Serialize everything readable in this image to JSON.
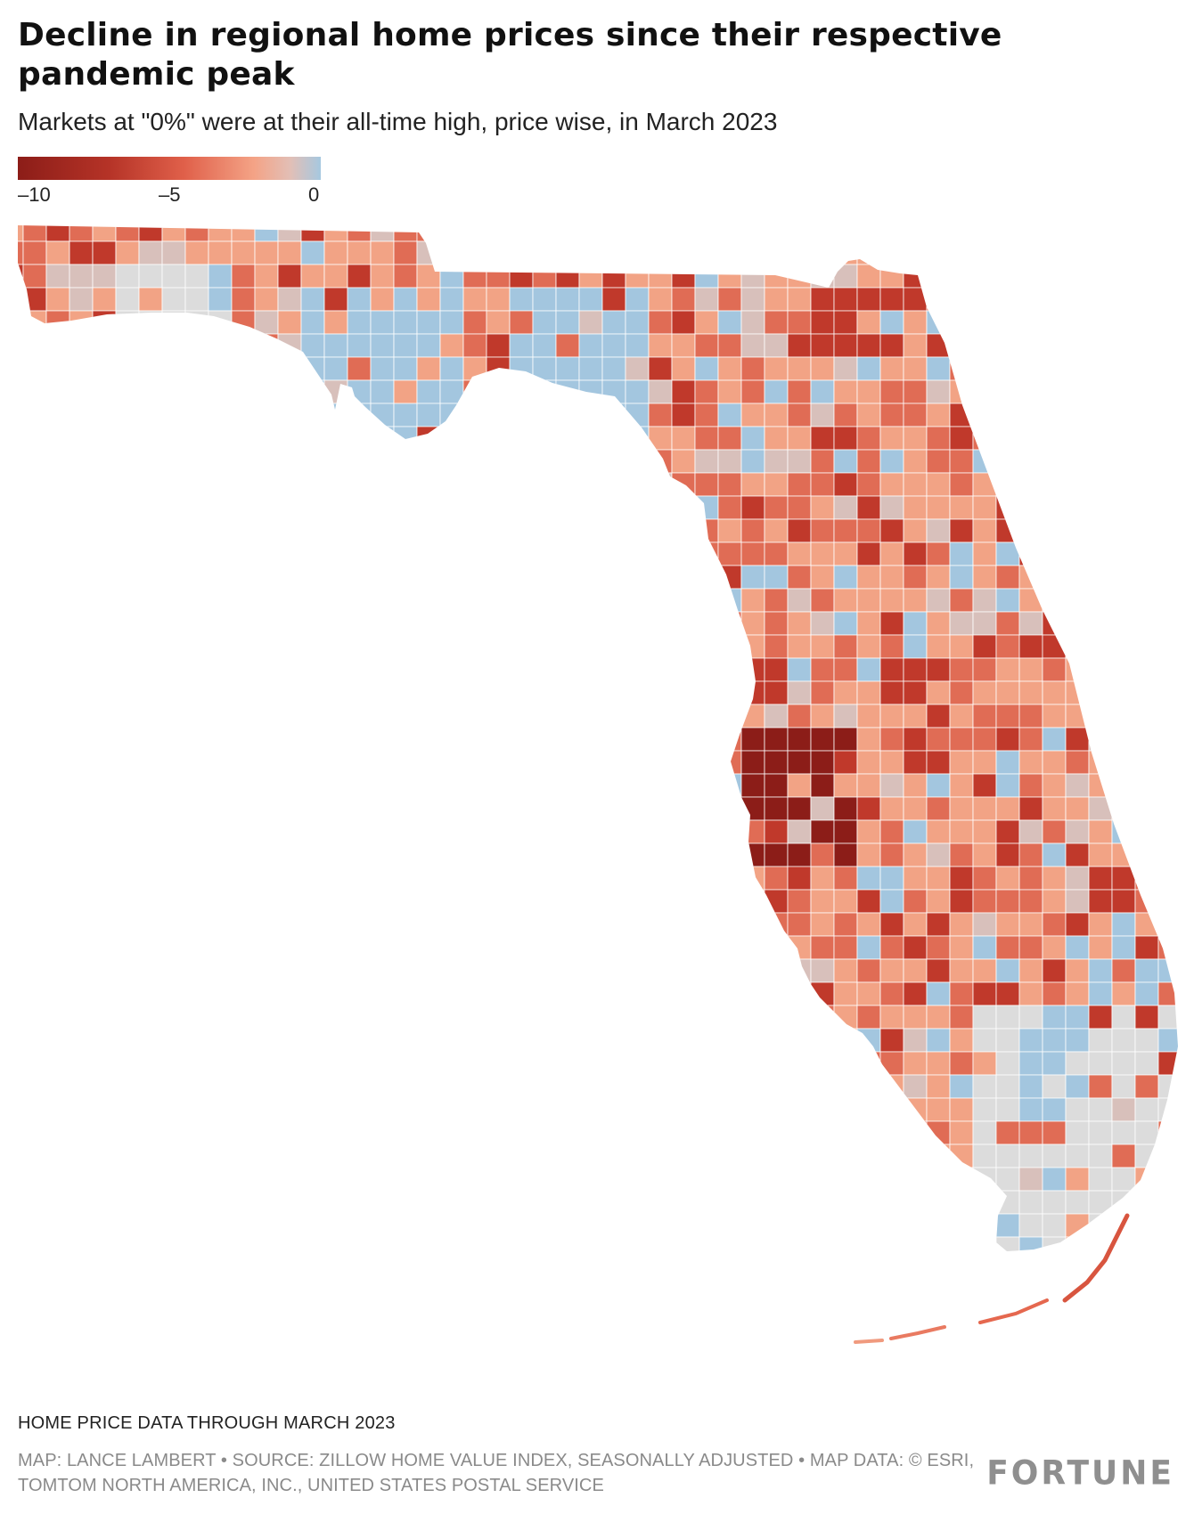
{
  "title": "Decline in regional home prices since their respective pandemic peak",
  "subtitle": "Markets at \"0%\" were at their all-time high, price wise, in March 2023",
  "legend": {
    "ticks": [
      "–10",
      "–5",
      "0"
    ],
    "min": -10,
    "max": 0,
    "colors": [
      "#8c1d18",
      "#c13a2c",
      "#e66a52",
      "#f4a386",
      "#dcc6c2",
      "#a6c8e0"
    ]
  },
  "colors": {
    "deep_decline": "#8c1d18",
    "strong_decline": "#c0392b",
    "moderate_decline": "#e06c55",
    "mild_decline": "#f2a385",
    "slight_decline": "#d8c0bb",
    "at_peak": "#a3c6df",
    "no_data": "#dcdcdc"
  },
  "note": "HOME PRICE DATA THROUGH MARCH 2023",
  "credits": "MAP: LANCE LAMBERT • SOURCE: ZILLOW HOME VALUE INDEX, SEASONALLY ADJUSTED • MAP DATA: © ESRI, TOMTOM NORTH AMERICA, INC., UNITED STATES POSTAL SERVICE",
  "brand": "FORTUNE"
}
